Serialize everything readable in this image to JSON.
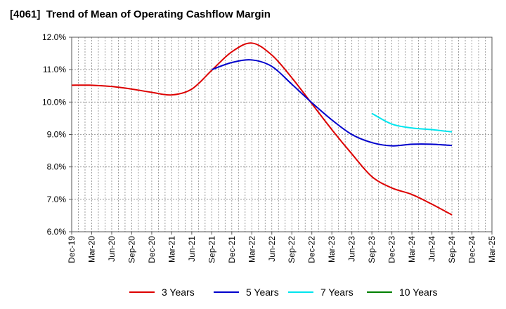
{
  "chart_data": {
    "type": "line",
    "title": "[4061]  Trend of Mean of Operating Cashflow Margin",
    "xlabel": "",
    "ylabel": "",
    "ylim": [
      6.0,
      12.0
    ],
    "yticks": [
      "6.0%",
      "7.0%",
      "8.0%",
      "9.0%",
      "10.0%",
      "11.0%",
      "12.0%"
    ],
    "xticks": [
      "Dec-19",
      "Mar-20",
      "Jun-20",
      "Sep-20",
      "Dec-20",
      "Mar-21",
      "Jun-21",
      "Sep-21",
      "Dec-21",
      "Mar-22",
      "Jun-22",
      "Sep-22",
      "Dec-22",
      "Mar-23",
      "Jun-23",
      "Sep-23",
      "Dec-23",
      "Mar-24",
      "Jun-24",
      "Sep-24",
      "Dec-24",
      "Mar-25"
    ],
    "x": [
      "Dec-19",
      "Mar-20",
      "Jun-20",
      "Sep-20",
      "Dec-20",
      "Mar-21",
      "Jun-21",
      "Sep-21",
      "Dec-21",
      "Mar-22",
      "Jun-22",
      "Sep-22",
      "Dec-22",
      "Mar-23",
      "Jun-23",
      "Sep-23",
      "Dec-23",
      "Mar-24",
      "Jun-24",
      "Sep-24"
    ],
    "series": [
      {
        "name": "3 Years",
        "color": "#dd0000",
        "values": [
          10.52,
          10.52,
          10.48,
          10.4,
          10.3,
          10.22,
          10.4,
          10.98,
          11.55,
          11.82,
          11.45,
          10.75,
          9.95,
          9.15,
          8.4,
          7.7,
          7.35,
          7.15,
          6.85,
          6.52
        ]
      },
      {
        "name": "5 Years",
        "color": "#0000cc",
        "values": [
          null,
          null,
          null,
          null,
          null,
          null,
          null,
          11.0,
          11.22,
          11.3,
          11.1,
          10.55,
          9.98,
          9.45,
          9.0,
          8.75,
          8.65,
          8.7,
          8.7,
          8.66
        ]
      },
      {
        "name": "7 Years",
        "color": "#00e5ee",
        "values": [
          null,
          null,
          null,
          null,
          null,
          null,
          null,
          null,
          null,
          null,
          null,
          null,
          null,
          null,
          null,
          9.65,
          9.32,
          9.2,
          9.15,
          9.08
        ]
      },
      {
        "name": "10 Years",
        "color": "#008000",
        "values": [
          null,
          null,
          null,
          null,
          null,
          null,
          null,
          null,
          null,
          null,
          null,
          null,
          null,
          null,
          null,
          null,
          null,
          null,
          null,
          null
        ]
      }
    ],
    "grid": true,
    "legend_position": "bottom"
  }
}
